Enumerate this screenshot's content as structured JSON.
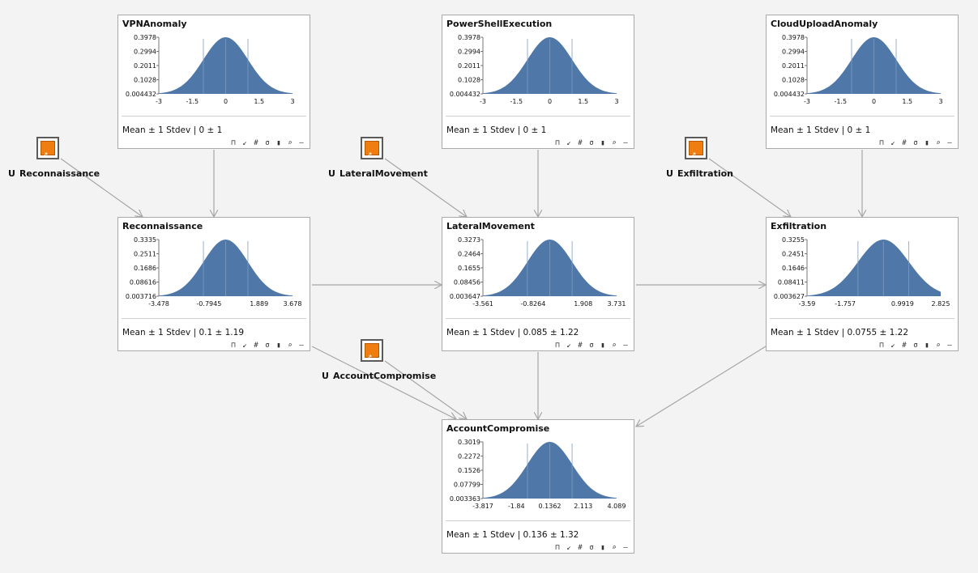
{
  "nodes": [
    {
      "id": "vpn",
      "title": "VPNAnomaly",
      "stat_label": "Mean ± 1 Stdev",
      "stat_value": "0 ± 1",
      "y_ticks": [
        "0.3978",
        "0.2994",
        "0.2011",
        "0.1028",
        "0.004432"
      ],
      "x_ticks": [
        "-3",
        "-1.5",
        "0",
        "1.5",
        "3"
      ],
      "x_range": [
        -3,
        3
      ],
      "mean": 0,
      "stdev": 1
    },
    {
      "id": "ps",
      "title": "PowerShellExecution",
      "stat_label": "Mean ± 1 Stdev",
      "stat_value": "0 ± 1",
      "y_ticks": [
        "0.3978",
        "0.2994",
        "0.2011",
        "0.1028",
        "0.004432"
      ],
      "x_ticks": [
        "-3",
        "-1.5",
        "0",
        "1.5",
        "3"
      ],
      "x_range": [
        -3,
        3
      ],
      "mean": 0,
      "stdev": 1
    },
    {
      "id": "cloud",
      "title": "CloudUploadAnomaly",
      "stat_label": "Mean ± 1 Stdev",
      "stat_value": "0 ± 1",
      "y_ticks": [
        "0.3978",
        "0.2994",
        "0.2011",
        "0.1028",
        "0.004432"
      ],
      "x_ticks": [
        "-3",
        "-1.5",
        "0",
        "1.5",
        "3"
      ],
      "x_range": [
        -3,
        3
      ],
      "mean": 0,
      "stdev": 1
    },
    {
      "id": "recon",
      "title": "Reconnaissance",
      "stat_label": "Mean ± 1 Stdev",
      "stat_value": "0.1 ± 1.19",
      "y_ticks": [
        "0.3335",
        "0.2511",
        "0.1686",
        "0.08616",
        "0.003716"
      ],
      "x_ticks": [
        "-3.478",
        "-0.7945",
        "1.889",
        "3.678"
      ],
      "x_range": [
        -3.478,
        3.678
      ],
      "mean": 0.1,
      "stdev": 1.19
    },
    {
      "id": "lateral",
      "title": "LateralMovement",
      "stat_label": "Mean ± 1 Stdev",
      "stat_value": "0.085 ± 1.22",
      "y_ticks": [
        "0.3273",
        "0.2464",
        "0.1655",
        "0.08456",
        "0.003647"
      ],
      "x_ticks": [
        "-3.561",
        "-0.8264",
        "1.908",
        "3.731"
      ],
      "x_range": [
        -3.561,
        3.731
      ],
      "mean": 0.085,
      "stdev": 1.22
    },
    {
      "id": "exfil",
      "title": "Exfiltration",
      "stat_label": "Mean ± 1 Stdev",
      "stat_value": "0.0755 ± 1.22",
      "y_ticks": [
        "0.3255",
        "0.2451",
        "0.1646",
        "0.08411",
        "0.003627"
      ],
      "x_ticks": [
        "-3.59",
        "-1.757",
        "0.9919",
        "2.825"
      ],
      "x_range": [
        -3.59,
        2.825
      ],
      "mean": 0.0755,
      "stdev": 1.22
    },
    {
      "id": "account",
      "title": "AccountCompromise",
      "stat_label": "Mean ± 1 Stdev",
      "stat_value": "0.136 ± 1.32",
      "y_ticks": [
        "0.3019",
        "0.2272",
        "0.1526",
        "0.07799",
        "0.003363"
      ],
      "x_ticks": [
        "-3.817",
        "-1.84",
        "0.1362",
        "2.113",
        "4.089"
      ],
      "x_range": [
        -3.817,
        4.089
      ],
      "mean": 0.136,
      "stdev": 1.32
    }
  ],
  "utility_nodes": [
    {
      "id": "u_recon",
      "prefix": "U",
      "name": "Reconnaissance"
    },
    {
      "id": "u_lateral",
      "prefix": "U",
      "name": "LateralMovement"
    },
    {
      "id": "u_exfil",
      "prefix": "U",
      "name": "Exfiltration"
    },
    {
      "id": "u_account",
      "prefix": "U",
      "name": "AccountCompromise"
    }
  ],
  "toolbar_icons": [
    "pin-icon",
    "collapse-icon",
    "grid-icon",
    "clock-icon",
    "histogram-icon",
    "zoom-icon",
    "minimize-icon"
  ],
  "colors": {
    "fill": "#4f77a8",
    "utility": "#f07d10",
    "edge": "#a6a6a6"
  }
}
